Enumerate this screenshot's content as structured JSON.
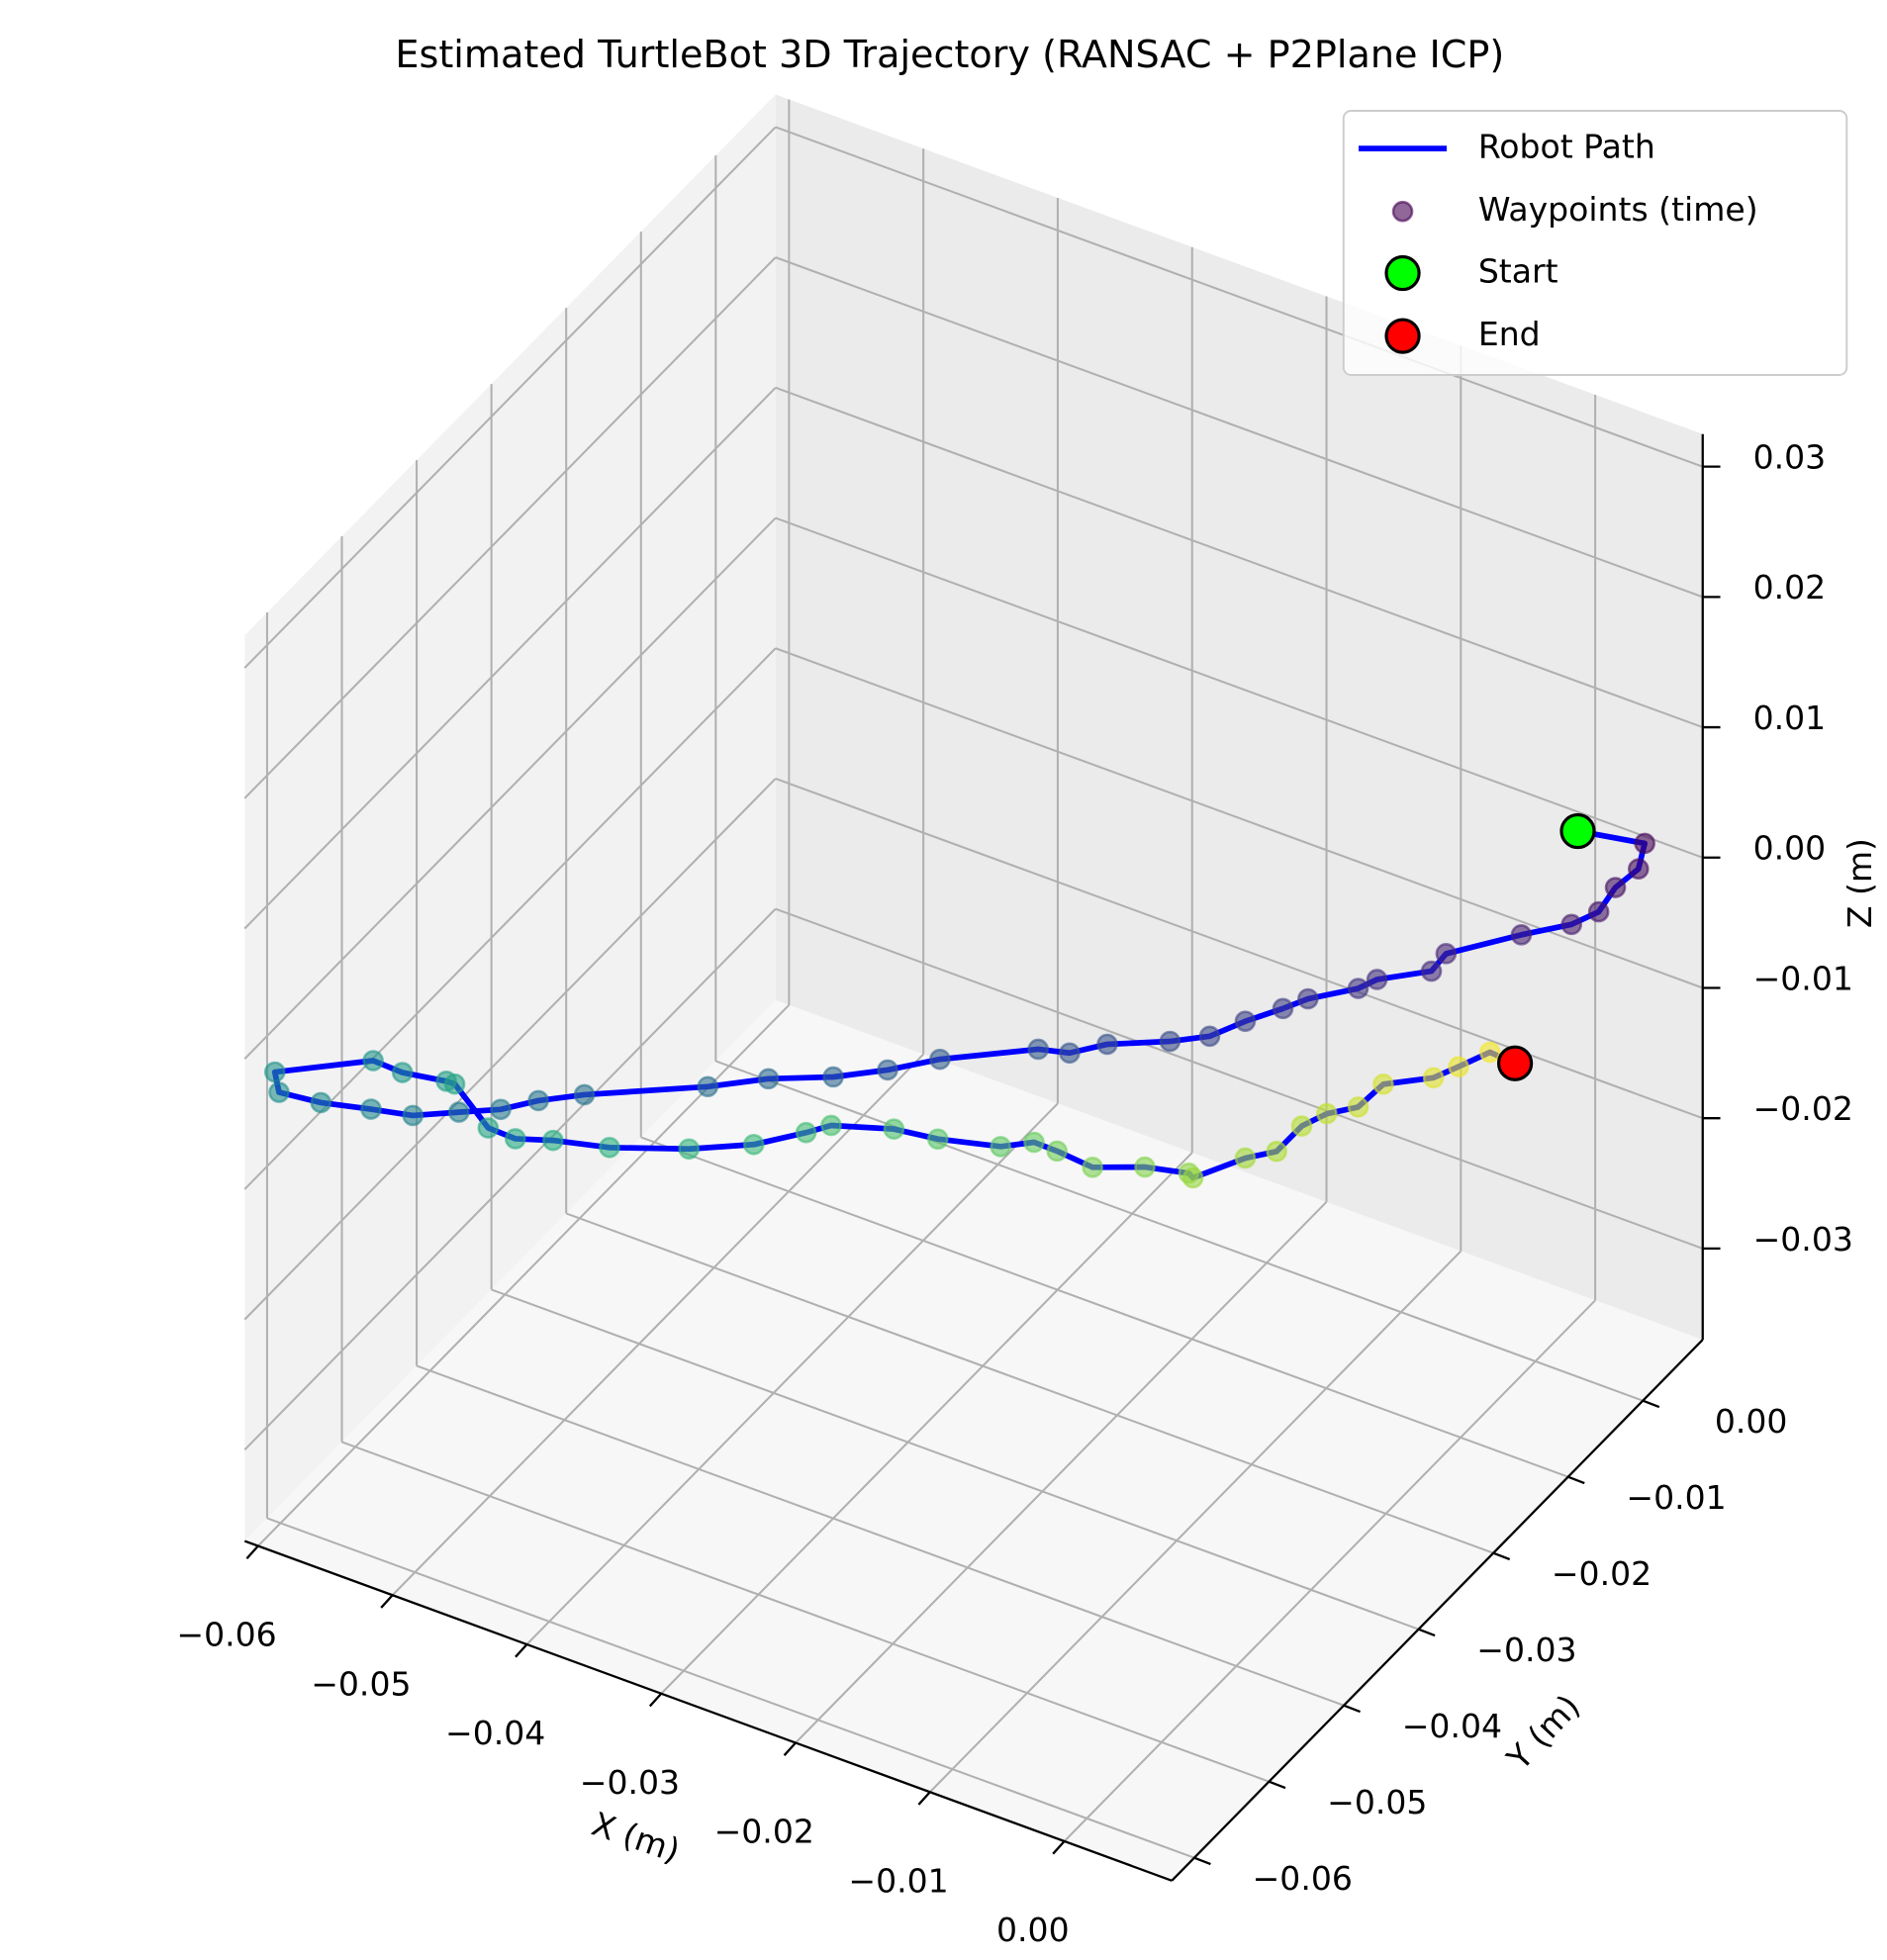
{
  "chart_data": {
    "type": "line3d",
    "title": "Estimated TurtleBot 3D Trajectory (RANSAC + P2Plane ICP)",
    "xlabel": "X (m)",
    "ylabel": "Y (m)",
    "zlabel": "Z (m)",
    "x": [
      0.0031,
      0.0063,
      0.006,
      0.0049,
      0.0041,
      0.0028,
      0.0004,
      -0.0032,
      -0.0039,
      -0.0065,
      -0.0074,
      -0.0098,
      -0.011,
      -0.0128,
      -0.0145,
      -0.0164,
      -0.0194,
      -0.0212,
      -0.0227,
      -0.0274,
      -0.0299,
      -0.0325,
      -0.0356,
      -0.0385,
      -0.0444,
      -0.0466,
      -0.0484,
      -0.0504,
      -0.0526,
      -0.0546,
      -0.057,
      -0.059,
      -0.0592,
      -0.0545,
      -0.0531,
      -0.051,
      -0.0506,
      -0.049,
      -0.0477,
      -0.0459,
      -0.0432,
      -0.0394,
      -0.0363,
      -0.0338,
      -0.0326,
      -0.0296,
      -0.0275,
      -0.0245,
      -0.0229,
      -0.0218,
      -0.0201,
      -0.0176,
      -0.0155,
      -0.0153,
      -0.0128,
      -0.0113,
      -0.0101,
      -0.0089,
      -0.0074,
      -0.0062,
      -0.0038,
      -0.0026,
      -0.0011,
      0.0001
    ],
    "y": [
      0.0001,
      0.0033,
      0.003,
      0.0019,
      0.0011,
      -0.0002,
      -0.0026,
      -0.0062,
      -0.0069,
      -0.0095,
      -0.0104,
      -0.0128,
      -0.014,
      -0.0158,
      -0.0175,
      -0.0194,
      -0.0224,
      -0.0242,
      -0.0257,
      -0.0304,
      -0.0329,
      -0.0355,
      -0.0386,
      -0.0415,
      -0.0474,
      -0.0496,
      -0.0514,
      -0.0534,
      -0.0556,
      -0.0576,
      -0.06,
      -0.062,
      -0.0622,
      -0.0575,
      -0.0561,
      -0.054,
      -0.0536,
      -0.052,
      -0.0507,
      -0.0489,
      -0.0462,
      -0.0424,
      -0.0393,
      -0.0368,
      -0.0356,
      -0.0326,
      -0.0305,
      -0.0275,
      -0.0259,
      -0.0248,
      -0.0231,
      -0.0206,
      -0.0185,
      -0.0183,
      -0.0158,
      -0.0143,
      -0.0131,
      -0.0119,
      -0.0104,
      -0.0092,
      -0.0068,
      -0.0056,
      -0.0041,
      -0.0029
    ],
    "z": [
      0.0048,
      0.0032,
      0.0013,
      0.0001,
      -0.0016,
      -0.0023,
      -0.0026,
      -0.0033,
      -0.0045,
      -0.0046,
      -0.0051,
      -0.0054,
      -0.0059,
      -0.0065,
      -0.0073,
      -0.0073,
      -0.0069,
      -0.0072,
      -0.0066,
      -0.0064,
      -0.0067,
      -0.0067,
      -0.0062,
      -0.0062,
      -0.0056,
      -0.0056,
      -0.0059,
      -0.0057,
      -0.0055,
      -0.0046,
      -0.0036,
      -0.0024,
      -0.0008,
      -0.0009,
      -0.0021,
      -0.0032,
      -0.0035,
      -0.0072,
      -0.0083,
      -0.0088,
      -0.0099,
      -0.0108,
      -0.0111,
      -0.0107,
      -0.0104,
      -0.0113,
      -0.0125,
      -0.0137,
      -0.0137,
      -0.0146,
      -0.0162,
      -0.0167,
      -0.0176,
      -0.018,
      -0.017,
      -0.0168,
      -0.0151,
      -0.0144,
      -0.0142,
      -0.0127,
      -0.0127,
      -0.0121,
      -0.0113,
      -0.0124
    ],
    "series": [
      {
        "name": "Robot Path",
        "color": "#0000ff"
      },
      {
        "name": "Waypoints (time)",
        "colormap": "viridis"
      },
      {
        "name": "Start",
        "color": "#00ff00"
      },
      {
        "name": "End",
        "color": "#ff0000"
      }
    ],
    "xlim": [
      -0.061,
      0.008
    ],
    "ylim": [
      -0.063,
      0.008
    ],
    "zlim": [
      -0.037,
      0.0325
    ],
    "xticks": [
      {
        "value": -0.06,
        "label": "−0.06"
      },
      {
        "value": -0.05,
        "label": "−0.05"
      },
      {
        "value": -0.04,
        "label": "−0.04"
      },
      {
        "value": -0.03,
        "label": "−0.03"
      },
      {
        "value": -0.02,
        "label": "−0.02"
      },
      {
        "value": -0.01,
        "label": "−0.01"
      },
      {
        "value": 0,
        "label": "0.00"
      }
    ],
    "yticks": [
      {
        "value": -0.06,
        "label": "−0.06"
      },
      {
        "value": -0.05,
        "label": "−0.05"
      },
      {
        "value": -0.04,
        "label": "−0.04"
      },
      {
        "value": -0.03,
        "label": "−0.03"
      },
      {
        "value": -0.02,
        "label": "−0.02"
      },
      {
        "value": -0.01,
        "label": "−0.01"
      },
      {
        "value": 0,
        "label": "0.00"
      }
    ],
    "zticks": [
      {
        "value": -0.03,
        "label": "−0.03"
      },
      {
        "value": -0.02,
        "label": "−0.02"
      },
      {
        "value": -0.01,
        "label": "−0.01"
      },
      {
        "value": 0,
        "label": "0.00"
      },
      0.01,
      0.02,
      0.03
    ],
    "grid": true,
    "legend": "upper right"
  }
}
